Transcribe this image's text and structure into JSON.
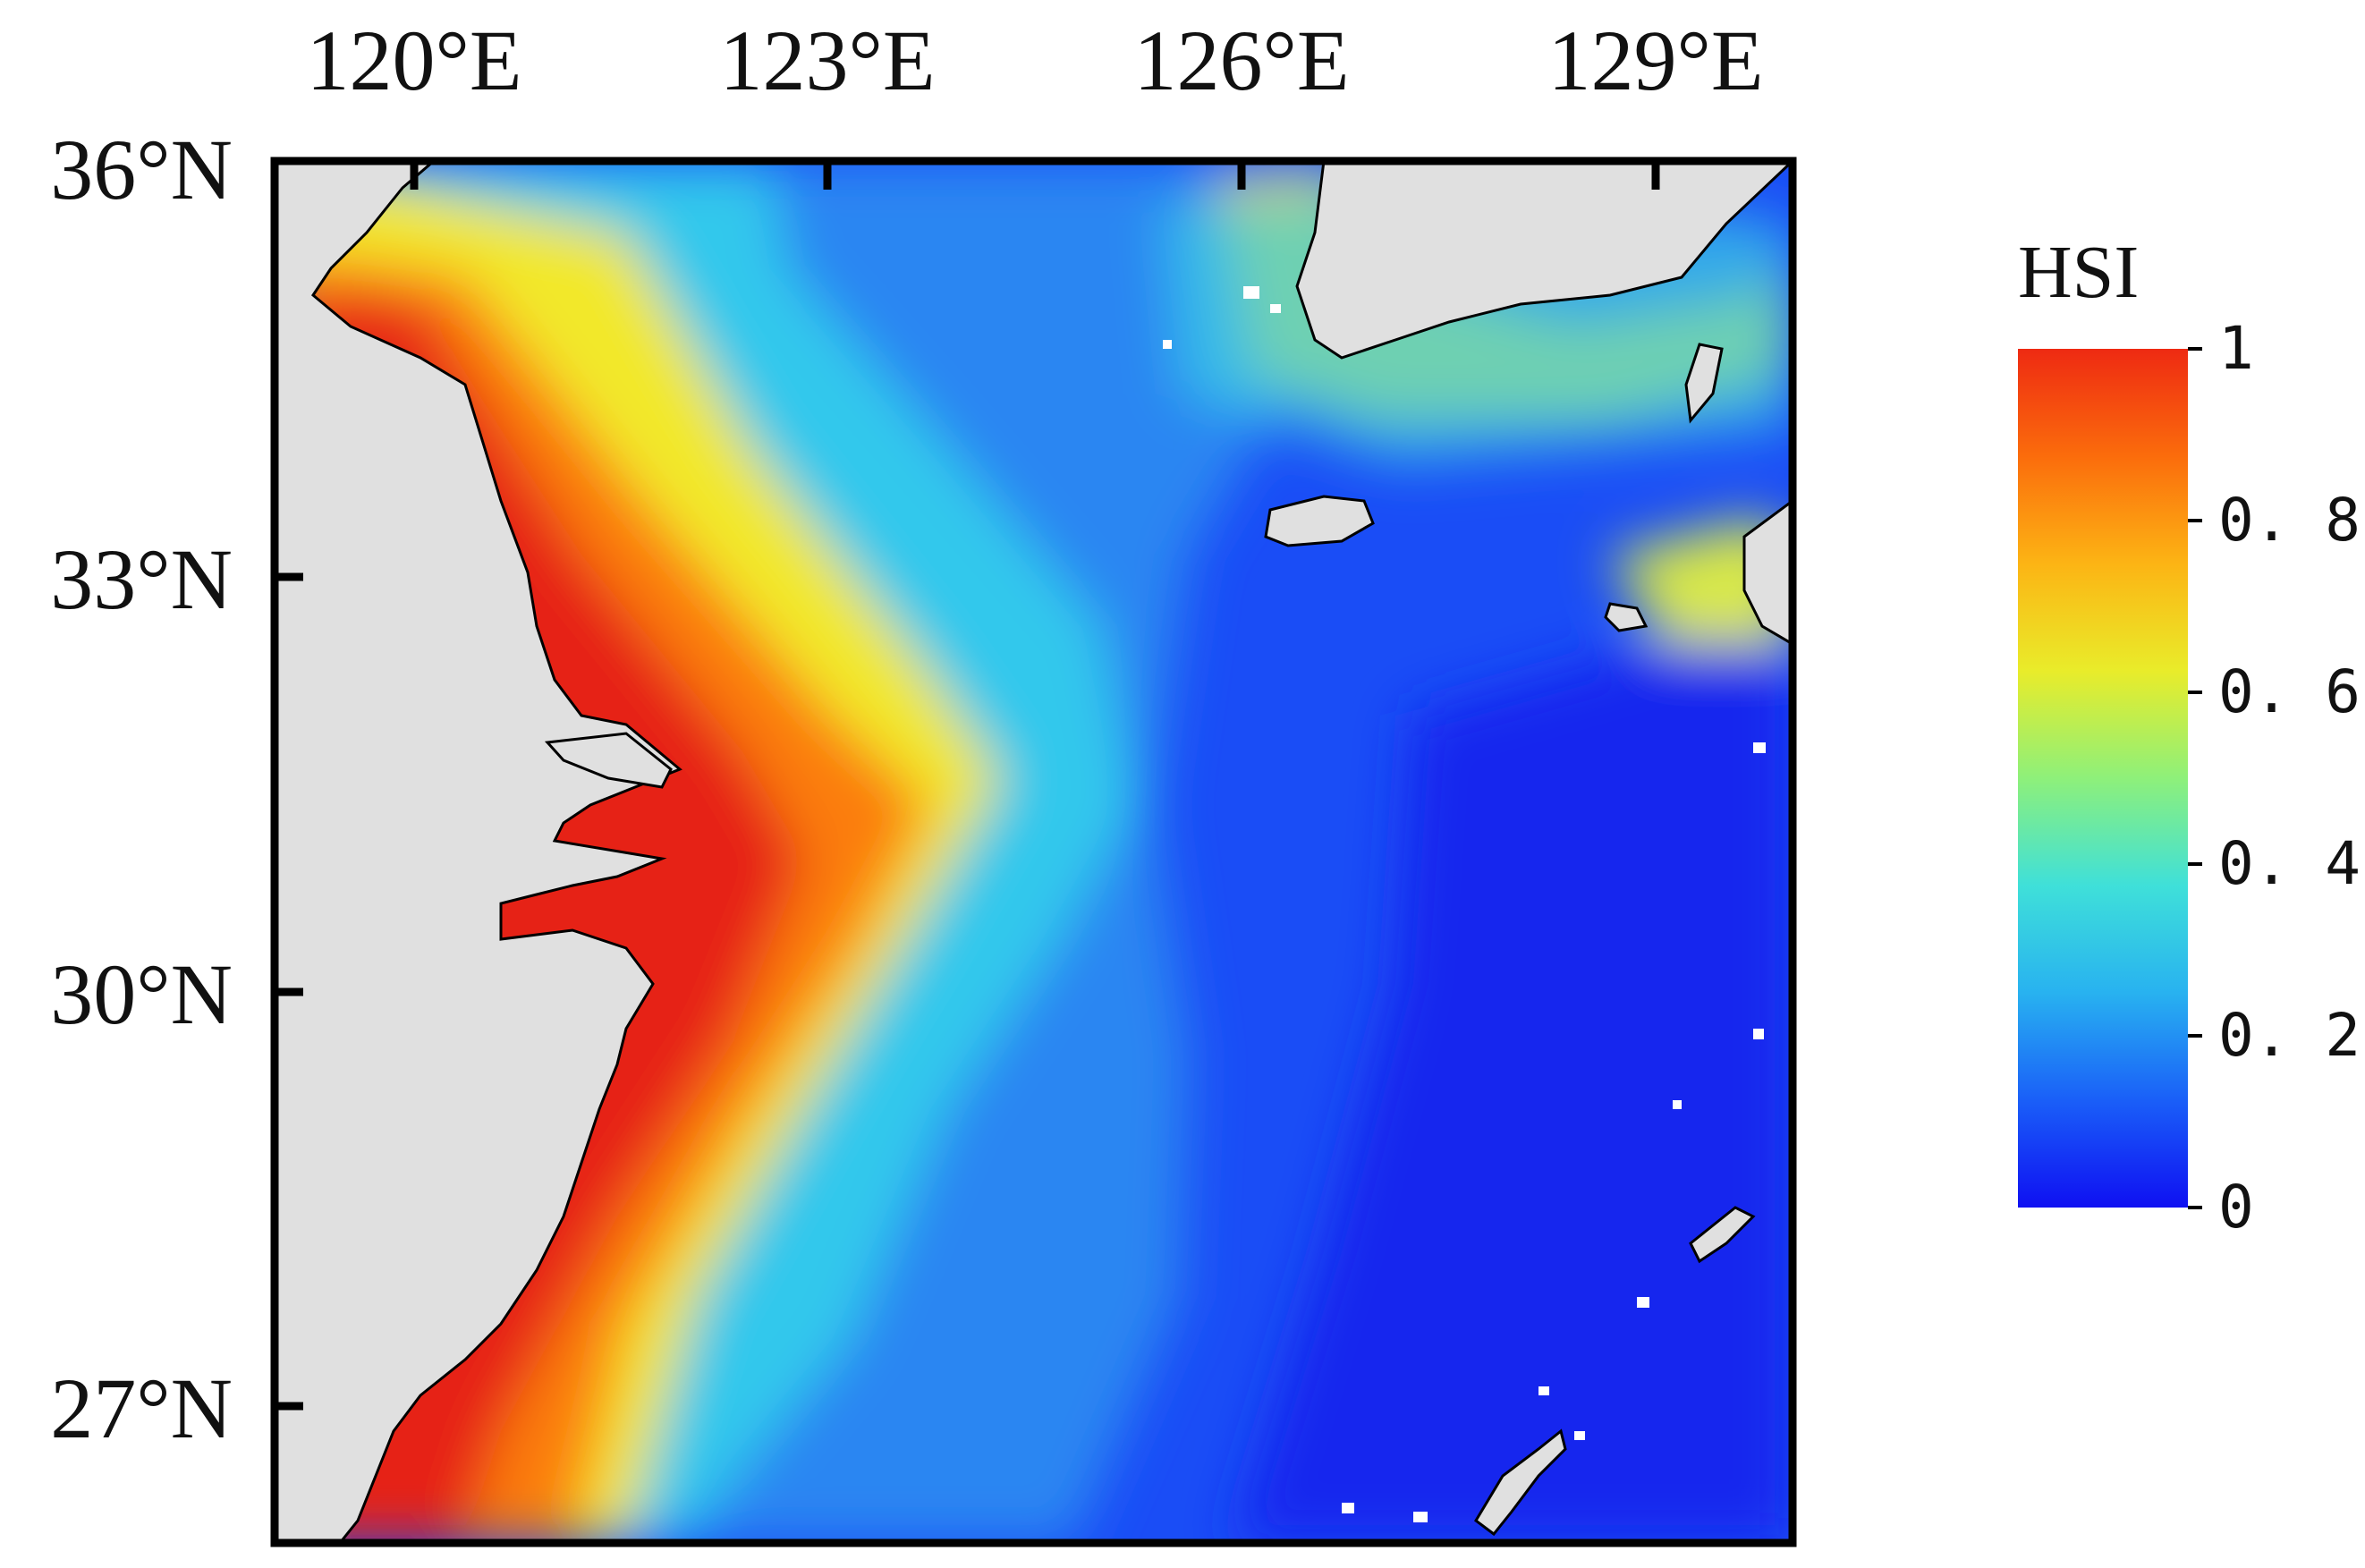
{
  "map": {
    "lon_labels": [
      "120°E",
      "123°E",
      "126°E",
      "129°E"
    ],
    "lat_labels": [
      "36°N",
      "33°N",
      "30°N",
      "27°N"
    ],
    "colorbar": {
      "title": "HSI",
      "ticks": [
        "1",
        "0. 8",
        "0. 6",
        "0. 4",
        "0. 2",
        "0"
      ],
      "colors": [
        "#0f10f2",
        "#1a5ff8",
        "#28b2f0",
        "#3fe0d9",
        "#8ef07a",
        "#e9ec2a",
        "#fcb414",
        "#fb6c0c",
        "#ee2a12"
      ]
    },
    "land_color": "#e0e0e0",
    "frame_color": "#000000"
  }
}
